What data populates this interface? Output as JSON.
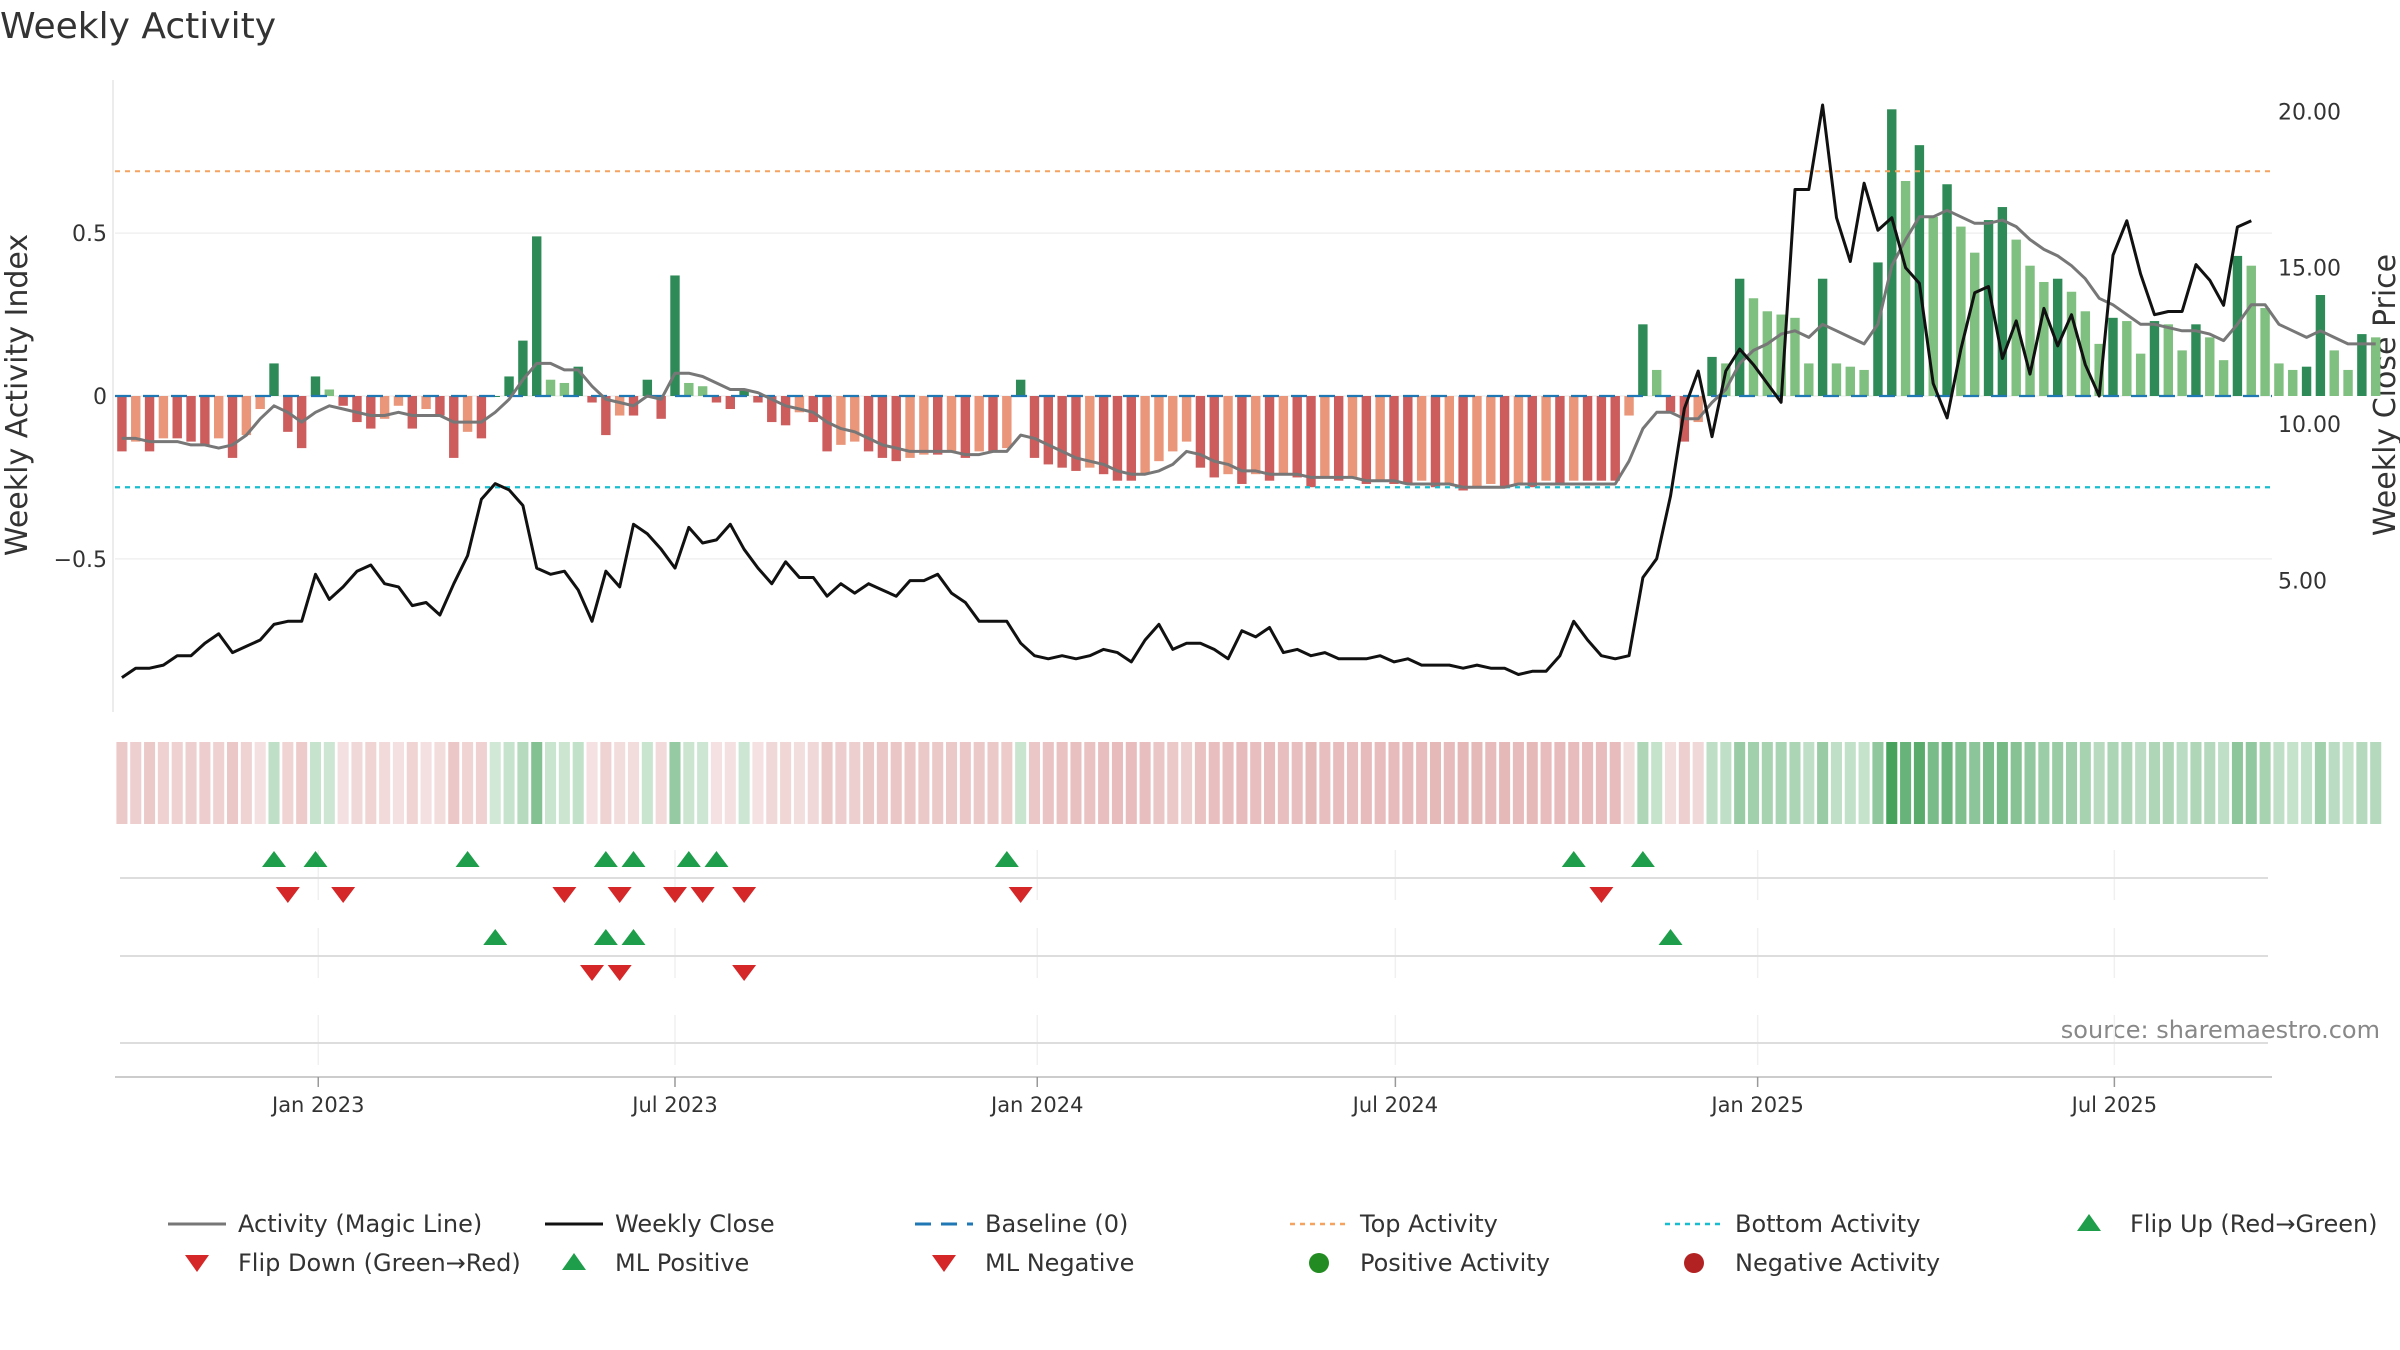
{
  "chart_data": {
    "type": "bar",
    "title": "Weekly Activity",
    "ylabel_left": "Weekly Activity Index",
    "ylabel_right": "Weekly Close Price",
    "source": "source: sharemaestro.com",
    "left_yticks": [
      {
        "v": 0.5,
        "label": "0.5"
      },
      {
        "v": 0,
        "label": "0"
      },
      {
        "v": -0.5,
        "label": "−0.5"
      }
    ],
    "right_yticks": [
      {
        "v": 20,
        "label": "20.00"
      },
      {
        "v": 15,
        "label": "15.00"
      },
      {
        "v": 10,
        "label": "10.00"
      },
      {
        "v": 5,
        "label": "5.00"
      }
    ],
    "ylim_left": [
      -0.97,
      0.97
    ],
    "ylim_right": [
      0.8,
      21
    ],
    "x_range_weeks": [
      0,
      156
    ],
    "xticks": [
      {
        "w": 14.2,
        "label": "Jan 2023"
      },
      {
        "w": 40.0,
        "label": "Jul 2023"
      },
      {
        "w": 66.2,
        "label": "Jan 2024"
      },
      {
        "w": 92.1,
        "label": "Jul 2024"
      },
      {
        "w": 118.3,
        "label": "Jan 2025"
      },
      {
        "w": 144.1,
        "label": "Jul 2025"
      }
    ],
    "top_activity": 0.69,
    "bottom_activity": -0.28,
    "baseline": 0,
    "activity": [
      -0.17,
      -0.14,
      -0.17,
      -0.13,
      -0.13,
      -0.14,
      -0.15,
      -0.13,
      -0.19,
      -0.12,
      -0.04,
      0.1,
      -0.11,
      -0.16,
      0.06,
      0.02,
      -0.03,
      -0.08,
      -0.1,
      -0.07,
      -0.03,
      -0.1,
      -0.04,
      -0.06,
      -0.19,
      -0.11,
      -0.13,
      0,
      0.06,
      0.17,
      0.49,
      0.05,
      0.04,
      0.09,
      -0.02,
      -0.12,
      -0.06,
      -0.06,
      0.05,
      -0.07,
      0.37,
      0.04,
      0.03,
      -0.02,
      -0.04,
      0.02,
      -0.02,
      -0.08,
      -0.09,
      -0.05,
      -0.08,
      -0.17,
      -0.15,
      -0.14,
      -0.17,
      -0.19,
      -0.2,
      -0.19,
      -0.18,
      -0.18,
      -0.17,
      -0.19,
      -0.17,
      -0.17,
      -0.16,
      0.05,
      -0.19,
      -0.21,
      -0.22,
      -0.23,
      -0.22,
      -0.24,
      -0.26,
      -0.26,
      -0.24,
      -0.2,
      -0.17,
      -0.14,
      -0.22,
      -0.25,
      -0.24,
      -0.27,
      -0.24,
      -0.26,
      -0.24,
      -0.25,
      -0.28,
      -0.25,
      -0.26,
      -0.25,
      -0.27,
      -0.26,
      -0.27,
      -0.27,
      -0.26,
      -0.28,
      -0.27,
      -0.29,
      -0.28,
      -0.27,
      -0.28,
      -0.27,
      -0.28,
      -0.26,
      -0.27,
      -0.26,
      -0.26,
      -0.26,
      -0.26,
      -0.06,
      0.22,
      0.08,
      -0.05,
      -0.14,
      -0.08,
      0.12,
      0.1,
      0.36,
      0.3,
      0.26,
      0.25,
      0.24,
      0.1,
      0.36,
      0.1,
      0.09,
      0.08,
      0.41,
      0.88,
      0.66,
      0.77,
      0.55,
      0.65,
      0.52,
      0.44,
      0.54,
      0.58,
      0.48,
      0.4,
      0.35,
      0.36,
      0.32,
      0.26,
      0.16,
      0.24,
      0.23,
      0.13,
      0.23,
      0.22,
      0.14,
      0.22,
      0.18,
      0.11,
      0.43,
      0.4,
      0.27,
      0.1,
      0.08,
      0.09,
      0.31,
      0.14,
      0.08,
      0.19,
      0.18
    ],
    "magic_line": [
      -0.13,
      -0.13,
      -0.14,
      -0.14,
      -0.14,
      -0.15,
      -0.15,
      -0.16,
      -0.15,
      -0.12,
      -0.07,
      -0.03,
      -0.05,
      -0.08,
      -0.05,
      -0.03,
      -0.04,
      -0.05,
      -0.06,
      -0.06,
      -0.05,
      -0.06,
      -0.06,
      -0.06,
      -0.08,
      -0.08,
      -0.08,
      -0.05,
      -0.01,
      0.05,
      0.1,
      0.1,
      0.08,
      0.08,
      0.03,
      -0.01,
      -0.02,
      -0.03,
      0.0,
      -0.01,
      0.07,
      0.07,
      0.06,
      0.04,
      0.02,
      0.02,
      0.01,
      -0.01,
      -0.03,
      -0.04,
      -0.05,
      -0.08,
      -0.1,
      -0.11,
      -0.13,
      -0.15,
      -0.16,
      -0.17,
      -0.17,
      -0.17,
      -0.17,
      -0.18,
      -0.18,
      -0.17,
      -0.17,
      -0.12,
      -0.13,
      -0.15,
      -0.17,
      -0.19,
      -0.2,
      -0.21,
      -0.23,
      -0.24,
      -0.24,
      -0.23,
      -0.21,
      -0.17,
      -0.18,
      -0.2,
      -0.21,
      -0.23,
      -0.23,
      -0.24,
      -0.24,
      -0.24,
      -0.25,
      -0.25,
      -0.25,
      -0.25,
      -0.26,
      -0.26,
      -0.26,
      -0.27,
      -0.27,
      -0.27,
      -0.27,
      -0.28,
      -0.28,
      -0.28,
      -0.28,
      -0.27,
      -0.27,
      -0.27,
      -0.27,
      -0.27,
      -0.27,
      -0.27,
      -0.27,
      -0.2,
      -0.1,
      -0.05,
      -0.05,
      -0.07,
      -0.07,
      -0.02,
      0.02,
      0.1,
      0.14,
      0.16,
      0.19,
      0.2,
      0.18,
      0.22,
      0.2,
      0.18,
      0.16,
      0.22,
      0.4,
      0.48,
      0.55,
      0.55,
      0.57,
      0.55,
      0.53,
      0.53,
      0.54,
      0.52,
      0.48,
      0.45,
      0.43,
      0.4,
      0.36,
      0.3,
      0.28,
      0.25,
      0.22,
      0.22,
      0.21,
      0.2,
      0.2,
      0.19,
      0.17,
      0.22,
      0.28,
      0.28,
      0.22,
      0.2,
      0.18,
      0.2,
      0.18,
      0.16,
      0.16,
      0.16
    ],
    "weekly_close": [
      1.9,
      2.2,
      2.2,
      2.3,
      2.6,
      2.6,
      3.0,
      3.3,
      2.7,
      2.9,
      3.1,
      3.6,
      3.7,
      3.7,
      5.2,
      4.4,
      4.8,
      5.3,
      5.5,
      4.9,
      4.8,
      4.2,
      4.3,
      3.9,
      4.9,
      5.8,
      7.6,
      8.1,
      7.9,
      7.4,
      5.4,
      5.2,
      5.3,
      4.7,
      3.7,
      5.3,
      4.8,
      6.8,
      6.5,
      6.0,
      5.4,
      6.7,
      6.2,
      6.3,
      6.8,
      6.0,
      5.4,
      4.9,
      5.6,
      5.1,
      5.1,
      4.5,
      4.9,
      4.6,
      4.9,
      4.7,
      4.5,
      5.0,
      5.0,
      5.2,
      4.6,
      4.3,
      3.7,
      3.7,
      3.7,
      3.0,
      2.6,
      2.5,
      2.6,
      2.5,
      2.6,
      2.8,
      2.7,
      2.4,
      3.1,
      3.6,
      2.8,
      3.0,
      3.0,
      2.8,
      2.5,
      3.4,
      3.2,
      3.5,
      2.7,
      2.8,
      2.6,
      2.7,
      2.5,
      2.5,
      2.5,
      2.6,
      2.4,
      2.5,
      2.3,
      2.3,
      2.3,
      2.2,
      2.3,
      2.2,
      2.2,
      2.0,
      2.1,
      2.1,
      2.6,
      3.7,
      3.1,
      2.6,
      2.5,
      2.6,
      5.1,
      5.7,
      7.7,
      10.5,
      11.7,
      9.6,
      11.7,
      12.4,
      11.9,
      11.3,
      10.7,
      17.5,
      17.5,
      20.2,
      16.6,
      15.2,
      17.7,
      16.2,
      16.6,
      15.0,
      14.5,
      11.3,
      10.2,
      12.4,
      14.2,
      14.4,
      12.1,
      13.3,
      11.6,
      13.7,
      12.5,
      13.5,
      11.9,
      10.9,
      15.4,
      16.5,
      14.8,
      13.5,
      13.6,
      13.6,
      15.1,
      14.6,
      13.8,
      16.3,
      16.5
    ],
    "heat_strip": [
      -0.95,
      -0.62,
      -0.45,
      -0.33,
      -0.3,
      -0.25,
      -0.15,
      -0.05,
      0.05,
      0.15,
      0.25,
      0.37,
      0.48,
      0.58,
      0.66,
      0.76,
      0.82,
      0.96
    ],
    "flip_up": [
      11,
      14,
      25,
      35,
      37,
      41,
      43,
      64,
      105,
      110
    ],
    "flip_down": [
      12,
      16,
      32,
      36,
      40,
      42,
      45,
      65,
      107
    ],
    "ml_positive": [
      27,
      35,
      37,
      112
    ],
    "ml_negative": [
      34,
      36,
      45
    ],
    "series_colors": {
      "magic_line": "#777777",
      "weekly_close": "#111111",
      "baseline": "#1f77b4",
      "top_activity": "#f4a460",
      "bottom_activity": "#17becf",
      "up_strong": "#2e8b57",
      "up_weak": "#7fbf7f",
      "down_strong": "#cd5c5c",
      "down_weak": "#e9967a",
      "marker_green": "#1e9e4a",
      "marker_red": "#d62728"
    },
    "legend": [
      {
        "label": "Activity (Magic Line)",
        "key": "magic_line"
      },
      {
        "label": "Weekly Close",
        "key": "weekly_close"
      },
      {
        "label": "Baseline (0)",
        "key": "baseline"
      },
      {
        "label": "Top Activity",
        "key": "top_activity"
      },
      {
        "label": "Bottom Activity",
        "key": "bottom_activity"
      },
      {
        "label": "Flip Up (Red→Green)",
        "key": "flip_up"
      },
      {
        "label": "Flip Down (Green→Red)",
        "key": "flip_down"
      },
      {
        "label": "ML Positive",
        "key": "ml_positive"
      },
      {
        "label": "ML Negative",
        "key": "ml_negative"
      },
      {
        "label": "Positive Activity",
        "key": "positive_activity"
      },
      {
        "label": "Negative Activity",
        "key": "negative_activity"
      }
    ]
  }
}
